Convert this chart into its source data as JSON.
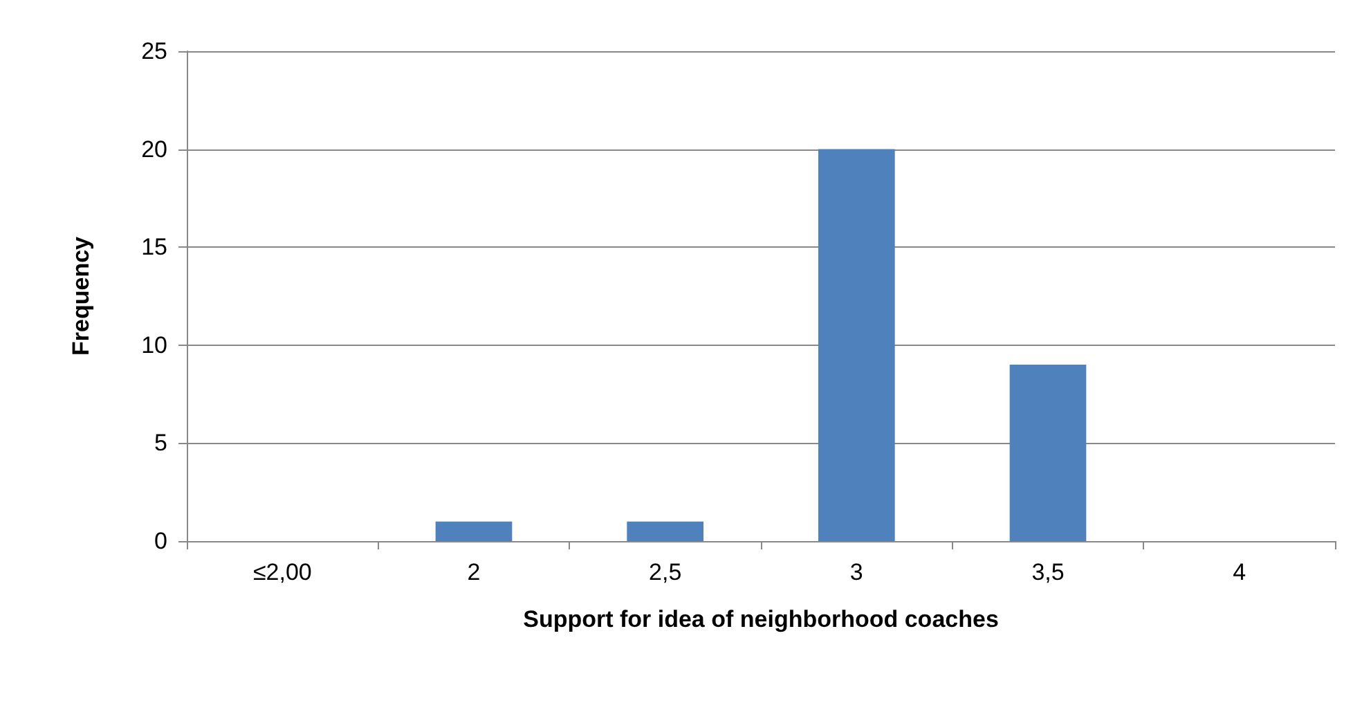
{
  "chart_data": {
    "type": "bar",
    "xlabel": "Support for idea of neighborhood coaches",
    "ylabel": "Frequency",
    "categories": [
      "≤2,00",
      "2",
      "2,5",
      "3",
      "3,5",
      "4"
    ],
    "values": [
      0,
      1,
      1,
      20,
      9,
      0
    ],
    "color": "#4f81bd",
    "ylim": [
      0,
      25
    ],
    "yticks": [
      0,
      5,
      10,
      15,
      20,
      25
    ],
    "grid": "y"
  }
}
